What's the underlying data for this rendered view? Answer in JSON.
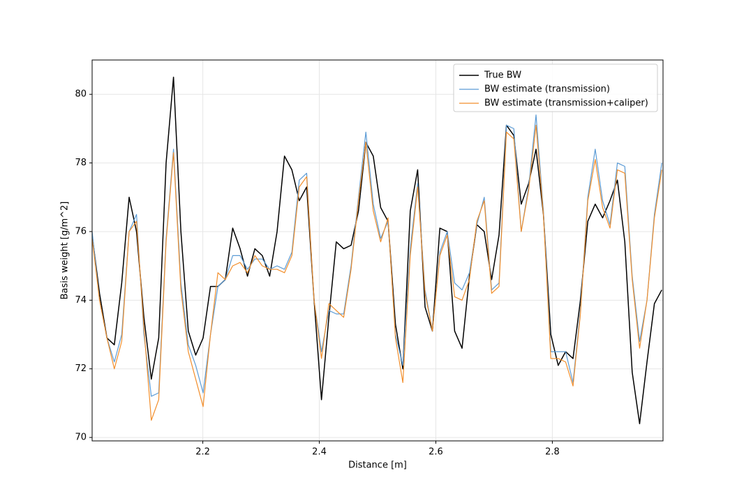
{
  "chart_data": {
    "type": "line",
    "xlabel": "Distance [m]",
    "ylabel": "Basis weight [g/m^2]",
    "x": [
      2.01,
      2.0227,
      2.0354,
      2.0481,
      2.0608,
      2.0735,
      2.0862,
      2.0989,
      2.1116,
      2.1243,
      2.137,
      2.1497,
      2.1624,
      2.1751,
      2.1878,
      2.2005,
      2.2132,
      2.2259,
      2.2386,
      2.2513,
      2.264,
      2.2767,
      2.2894,
      2.3021,
      2.3148,
      2.3275,
      2.3402,
      2.3529,
      2.3656,
      2.3783,
      2.391,
      2.4037,
      2.4164,
      2.4291,
      2.4418,
      2.4545,
      2.4672,
      2.4799,
      2.4926,
      2.5053,
      2.518,
      2.5307,
      2.5434,
      2.5561,
      2.5688,
      2.5815,
      2.5942,
      2.6069,
      2.6196,
      2.6323,
      2.645,
      2.6577,
      2.6704,
      2.6831,
      2.6958,
      2.7085,
      2.7212,
      2.7339,
      2.7466,
      2.7593,
      2.772,
      2.7847,
      2.7974,
      2.8101,
      2.8228,
      2.8355,
      2.8482,
      2.8609,
      2.8736,
      2.8863,
      2.899,
      2.9117,
      2.9244,
      2.9371,
      2.9498,
      2.9625,
      2.9752,
      2.9879
    ],
    "series": [
      {
        "name": "True BW",
        "color": "#000000",
        "width": 1.5,
        "values": [
          75.9,
          74.2,
          72.9,
          72.7,
          74.5,
          77.0,
          76.0,
          73.5,
          71.7,
          72.9,
          78.0,
          80.5,
          76.0,
          73.1,
          72.4,
          72.9,
          74.4,
          74.4,
          74.6,
          76.1,
          75.5,
          74.7,
          75.5,
          75.3,
          74.7,
          76.0,
          78.2,
          77.8,
          76.9,
          77.3,
          74.0,
          71.1,
          73.5,
          75.7,
          75.5,
          75.6,
          76.6,
          78.6,
          78.2,
          76.7,
          76.3,
          73.3,
          72.0,
          76.6,
          77.8,
          73.8,
          73.1,
          76.1,
          76.0,
          73.1,
          72.6,
          74.7,
          76.2,
          76.0,
          74.6,
          75.9,
          79.1,
          78.8,
          76.8,
          77.4,
          78.4,
          76.5,
          73.0,
          72.1,
          72.5,
          72.3,
          74.0,
          76.3,
          76.8,
          76.4,
          76.9,
          77.5,
          75.7,
          71.9,
          70.4,
          72.2,
          73.9,
          74.3
        ]
      },
      {
        "name": "BW estimate (transmission)",
        "color": "#5b9bd5",
        "width": 1.2,
        "values": [
          76.0,
          74.0,
          72.9,
          72.2,
          73.0,
          76.0,
          76.5,
          73.0,
          71.2,
          71.3,
          75.8,
          78.4,
          74.5,
          72.7,
          72.1,
          71.3,
          73.0,
          74.4,
          74.6,
          75.3,
          75.3,
          74.9,
          75.2,
          75.2,
          74.9,
          75.0,
          74.9,
          75.4,
          77.5,
          77.7,
          74.0,
          72.5,
          73.7,
          73.6,
          73.6,
          75.0,
          77.0,
          78.9,
          76.8,
          75.8,
          76.3,
          73.0,
          72.1,
          75.5,
          77.4,
          74.3,
          73.1,
          75.4,
          76.0,
          74.5,
          74.3,
          74.8,
          76.2,
          77.0,
          74.3,
          74.5,
          79.1,
          79.0,
          76.0,
          77.3,
          79.4,
          76.6,
          72.5,
          72.5,
          72.5,
          71.6,
          73.7,
          77.0,
          78.4,
          76.9,
          76.2,
          78.0,
          77.9,
          74.7,
          72.8,
          74.0,
          76.5,
          78.0
        ]
      },
      {
        "name": "BW estimate (transmission+caliper)",
        "color": "#f28e2b",
        "width": 1.2,
        "values": [
          75.8,
          74.0,
          72.9,
          72.0,
          72.8,
          76.0,
          76.3,
          73.2,
          70.5,
          71.1,
          75.7,
          78.3,
          74.3,
          72.5,
          71.7,
          70.9,
          73.0,
          74.8,
          74.6,
          75.0,
          75.1,
          74.8,
          75.3,
          75.0,
          74.9,
          74.9,
          74.8,
          75.3,
          77.3,
          77.6,
          74.0,
          72.3,
          73.9,
          73.7,
          73.5,
          74.9,
          76.9,
          78.6,
          76.6,
          75.7,
          76.4,
          72.9,
          71.6,
          75.3,
          77.3,
          74.2,
          73.1,
          75.3,
          75.9,
          74.1,
          74.0,
          74.6,
          76.3,
          76.9,
          74.2,
          74.4,
          78.9,
          78.7,
          76.0,
          77.2,
          79.1,
          76.5,
          72.3,
          72.3,
          72.2,
          71.5,
          73.6,
          76.9,
          78.1,
          76.7,
          76.1,
          77.8,
          77.7,
          74.6,
          72.6,
          74.0,
          76.4,
          77.8
        ]
      }
    ],
    "xlim": [
      2.01,
      2.99
    ],
    "xticks": [
      2.2,
      2.4,
      2.6,
      2.8
    ],
    "ylim": [
      69.9,
      81.0
    ],
    "yticks": [
      70,
      72,
      74,
      76,
      78,
      80
    ],
    "grid": true,
    "legend": "upper right"
  }
}
